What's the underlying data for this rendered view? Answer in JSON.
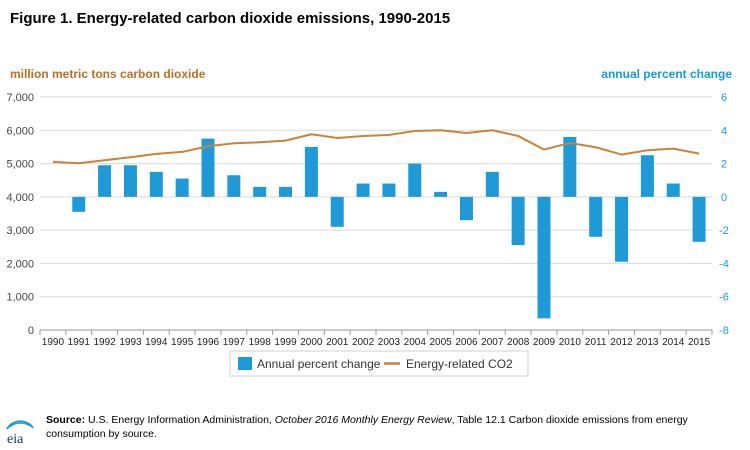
{
  "title": "Figure 1. Energy-related carbon dioxide emissions, 1990-2015",
  "colors": {
    "bars": "#1f9ad6",
    "line": "#c9833b",
    "left_axis_label": "#b5722a",
    "right_axis_label": "#1a9ad6",
    "grid": "#d9d9d9",
    "tick_text": "#444444"
  },
  "chart_data": {
    "type": "bar",
    "title": "Figure 1. Energy-related carbon dioxide emissions, 1990-2015",
    "categories": [
      "1990",
      "1991",
      "1992",
      "1993",
      "1994",
      "1995",
      "1996",
      "1997",
      "1998",
      "1999",
      "2000",
      "2001",
      "2002",
      "2003",
      "2004",
      "2005",
      "2006",
      "2007",
      "2008",
      "2009",
      "2010",
      "2011",
      "2012",
      "2013",
      "2014",
      "2015"
    ],
    "ylabel": "million metric tons carbon dioxide",
    "y2label": "annual percent change",
    "ylim": [
      0,
      7000
    ],
    "y2lim": [
      -8,
      6
    ],
    "yticks": [
      "0",
      "1,000",
      "2,000",
      "3,000",
      "4,000",
      "5,000",
      "6,000",
      "7,000"
    ],
    "y2ticks": [
      "-8",
      "-6",
      "-4",
      "-2",
      "0",
      "2",
      "4",
      "6"
    ],
    "grid": true,
    "legend_position": "bottom",
    "series": [
      {
        "name": "Annual percent change",
        "type": "bar",
        "axis": "right",
        "values": [
          null,
          -0.9,
          1.9,
          1.9,
          1.5,
          1.1,
          3.5,
          1.3,
          0.6,
          0.6,
          3.0,
          -1.8,
          0.8,
          0.8,
          2.0,
          0.3,
          -1.4,
          1.5,
          -2.9,
          -7.3,
          3.6,
          -2.4,
          -3.9,
          2.5,
          0.8,
          -2.7
        ]
      },
      {
        "name": "Energy-related CO2",
        "type": "line",
        "axis": "left",
        "values": [
          5050,
          5010,
          5100,
          5190,
          5290,
          5350,
          5520,
          5610,
          5640,
          5690,
          5880,
          5770,
          5830,
          5860,
          5980,
          6000,
          5920,
          6000,
          5830,
          5420,
          5620,
          5490,
          5270,
          5400,
          5450,
          5300
        ]
      }
    ]
  },
  "legend": {
    "bar_label": "Annual percent change",
    "line_label": "Energy-related CO2"
  },
  "footer": {
    "source_label": "Source:",
    "source_text_1": " U.S. Energy Information Administration, ",
    "source_publication": "October 2016 Monthly Energy Review",
    "source_text_2": ", Table 12.1 Carbon dioxide emissions from energy consumption by source."
  },
  "logo": {
    "text": "eia"
  }
}
